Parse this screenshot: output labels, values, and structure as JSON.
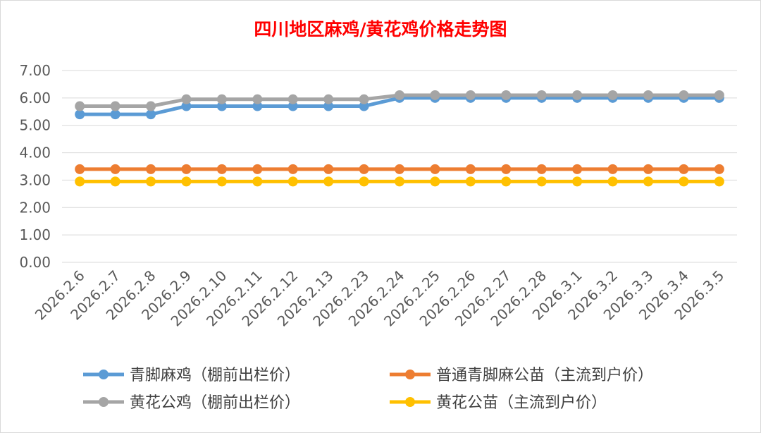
{
  "chart_data": {
    "type": "line",
    "title": "四川地区麻鸡/黄花鸡价格走势图",
    "xlabel": "",
    "ylabel": "",
    "ylim": [
      0,
      7
    ],
    "yticks": [
      "0.00",
      "1.00",
      "2.00",
      "3.00",
      "4.00",
      "5.00",
      "6.00",
      "7.00"
    ],
    "grid": true,
    "legend_position": "bottom",
    "categories": [
      "2026.2.6",
      "2026.2.7",
      "2026.2.8",
      "2026.2.9",
      "2026.2.10",
      "2026.2.11",
      "2026.2.12",
      "2026.2.13",
      "2026.2.23",
      "2026.2.24",
      "2026.2.25",
      "2026.2.26",
      "2026.2.27",
      "2026.2.28",
      "2026.3.1",
      "2026.3.2",
      "2026.3.3",
      "2026.3.4",
      "2026.3.5"
    ],
    "series": [
      {
        "name": "青脚麻鸡（棚前出栏价）",
        "color": "#5b9bd5",
        "values": [
          5.4,
          5.4,
          5.4,
          5.7,
          5.7,
          5.7,
          5.7,
          5.7,
          5.7,
          6.0,
          6.0,
          6.0,
          6.0,
          6.0,
          6.0,
          6.0,
          6.0,
          6.0,
          6.0
        ]
      },
      {
        "name": "普通青脚麻公苗（主流到户价）",
        "color": "#ed7d31",
        "values": [
          3.4,
          3.4,
          3.4,
          3.4,
          3.4,
          3.4,
          3.4,
          3.4,
          3.4,
          3.4,
          3.4,
          3.4,
          3.4,
          3.4,
          3.4,
          3.4,
          3.4,
          3.4,
          3.4
        ]
      },
      {
        "name": "黄花公鸡（棚前出栏价）",
        "color": "#a5a5a5",
        "values": [
          5.7,
          5.7,
          5.7,
          5.95,
          5.95,
          5.95,
          5.95,
          5.95,
          5.95,
          6.1,
          6.1,
          6.1,
          6.1,
          6.1,
          6.1,
          6.1,
          6.1,
          6.1,
          6.1
        ]
      },
      {
        "name": "黄花公苗（主流到户价）",
        "color": "#ffc000",
        "values": [
          2.95,
          2.95,
          2.95,
          2.95,
          2.95,
          2.95,
          2.95,
          2.95,
          2.95,
          2.95,
          2.95,
          2.95,
          2.95,
          2.95,
          2.95,
          2.95,
          2.95,
          2.95,
          2.95
        ]
      }
    ]
  }
}
